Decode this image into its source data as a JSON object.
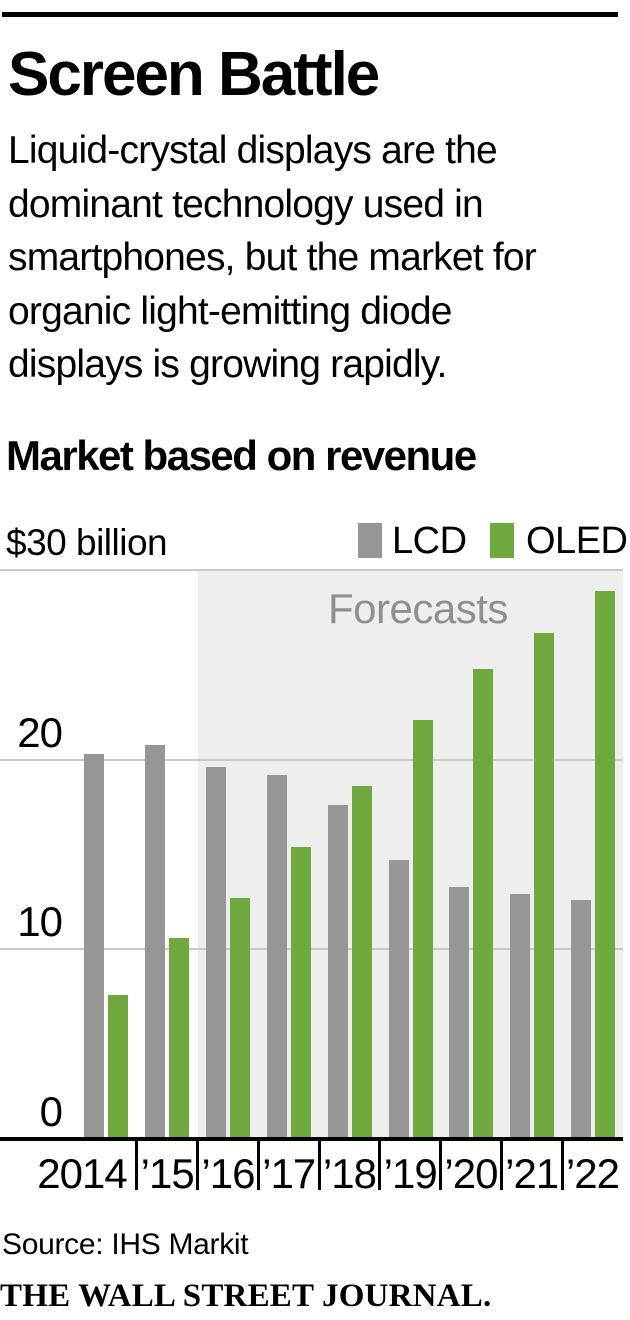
{
  "header": {
    "title": "Screen Battle",
    "description": "Liquid-crystal displays are the\ndominant technology used in\nsmartphones, but the market for\norganic light-emitting diode\ndisplays is growing rapidly."
  },
  "chart": {
    "heading": "Market based on revenue",
    "y_axis_unit_label": "$30 billion",
    "legend": [
      {
        "label": "LCD",
        "color": "#969696"
      },
      {
        "label": "OLED",
        "color": "#6fa83e"
      }
    ],
    "forecast_label": "Forecasts"
  },
  "chart_data": {
    "type": "bar",
    "title": "Market based on revenue",
    "unit": "billions of U.S. dollars",
    "categories": [
      "2014",
      "’15",
      "’16",
      "’17",
      "’18",
      "’19",
      "’20",
      "’21",
      "’22"
    ],
    "series": [
      {
        "name": "LCD",
        "color": "#969696",
        "values": [
          20.3,
          20.8,
          19.6,
          19.2,
          17.6,
          14.7,
          13.3,
          12.9,
          12.6
        ]
      },
      {
        "name": "OLED",
        "color": "#6fa83e",
        "values": [
          7.6,
          10.6,
          12.7,
          15.4,
          18.6,
          22.1,
          24.8,
          26.7,
          28.9
        ]
      }
    ],
    "ylim": [
      0,
      30
    ],
    "y_ticks": [
      {
        "label": "20",
        "value": 20
      },
      {
        "label": "10",
        "value": 10
      },
      {
        "label": "0",
        "value": 0
      }
    ],
    "gridline_values": [
      30,
      20,
      10
    ],
    "forecast_from_category": "’16",
    "annotation": "Forecasts",
    "legend_position": "top-right",
    "grid": true
  },
  "colors": {
    "bar_lcd": "#969696",
    "bar_oled": "#6fa83e",
    "forecast_bg": "#eeeeee",
    "gridline": "#c9c9c9",
    "annotation_text": "#8f8f8f",
    "axis": "#000000"
  },
  "footer": {
    "source": "Source: IHS Markit",
    "brand": "THE WALL STREET JOURNAL."
  }
}
